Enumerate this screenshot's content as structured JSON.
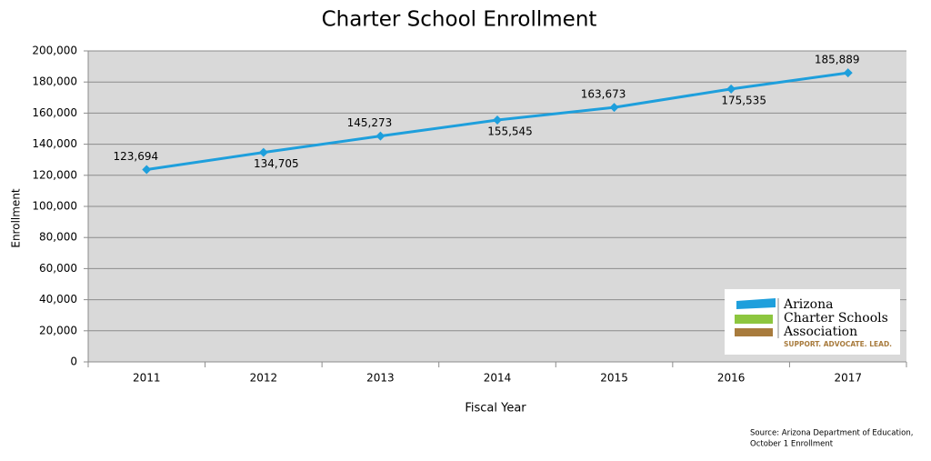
{
  "chart_data": {
    "type": "line",
    "title": "Charter School Enrollment",
    "x_label": "Fiscal Year",
    "y_label": "Enrollment",
    "categories": [
      "2011",
      "2012",
      "2013",
      "2014",
      "2015",
      "2016",
      "2017"
    ],
    "values": [
      123694,
      134705,
      145273,
      155545,
      163673,
      175535,
      185889
    ],
    "value_labels": [
      "123,694",
      "134,705",
      "145,273",
      "155,545",
      "163,673",
      "175,535",
      "185,889"
    ],
    "color": "#1e9fdc",
    "ylim": [
      0,
      200000
    ],
    "yticks": [
      0,
      {
        "value": 20000,
        "label": "20,000"
      },
      {
        "value": 40000,
        "label": "40,000"
      },
      {
        "value": 60000,
        "label": "60,000"
      },
      {
        "value": 80000,
        "label": "80,000"
      },
      {
        "value": 100000,
        "label": "100,000"
      },
      {
        "value": 120000,
        "label": "120,000"
      },
      {
        "value": 140000,
        "label": "140,000"
      },
      {
        "value": 160000,
        "label": "160,000"
      },
      {
        "value": 180000,
        "label": "180,000"
      },
      {
        "value": 200000,
        "label": "200,000"
      }
    ],
    "grid": true,
    "source": [
      "Source: Arizona Department of Education,",
      "October 1 Enrollment"
    ]
  },
  "logo": {
    "name_lines": [
      "Arizona",
      "Charter Schools",
      "Association"
    ],
    "tagline": "SUPPORT. ADVOCATE. LEAD."
  }
}
